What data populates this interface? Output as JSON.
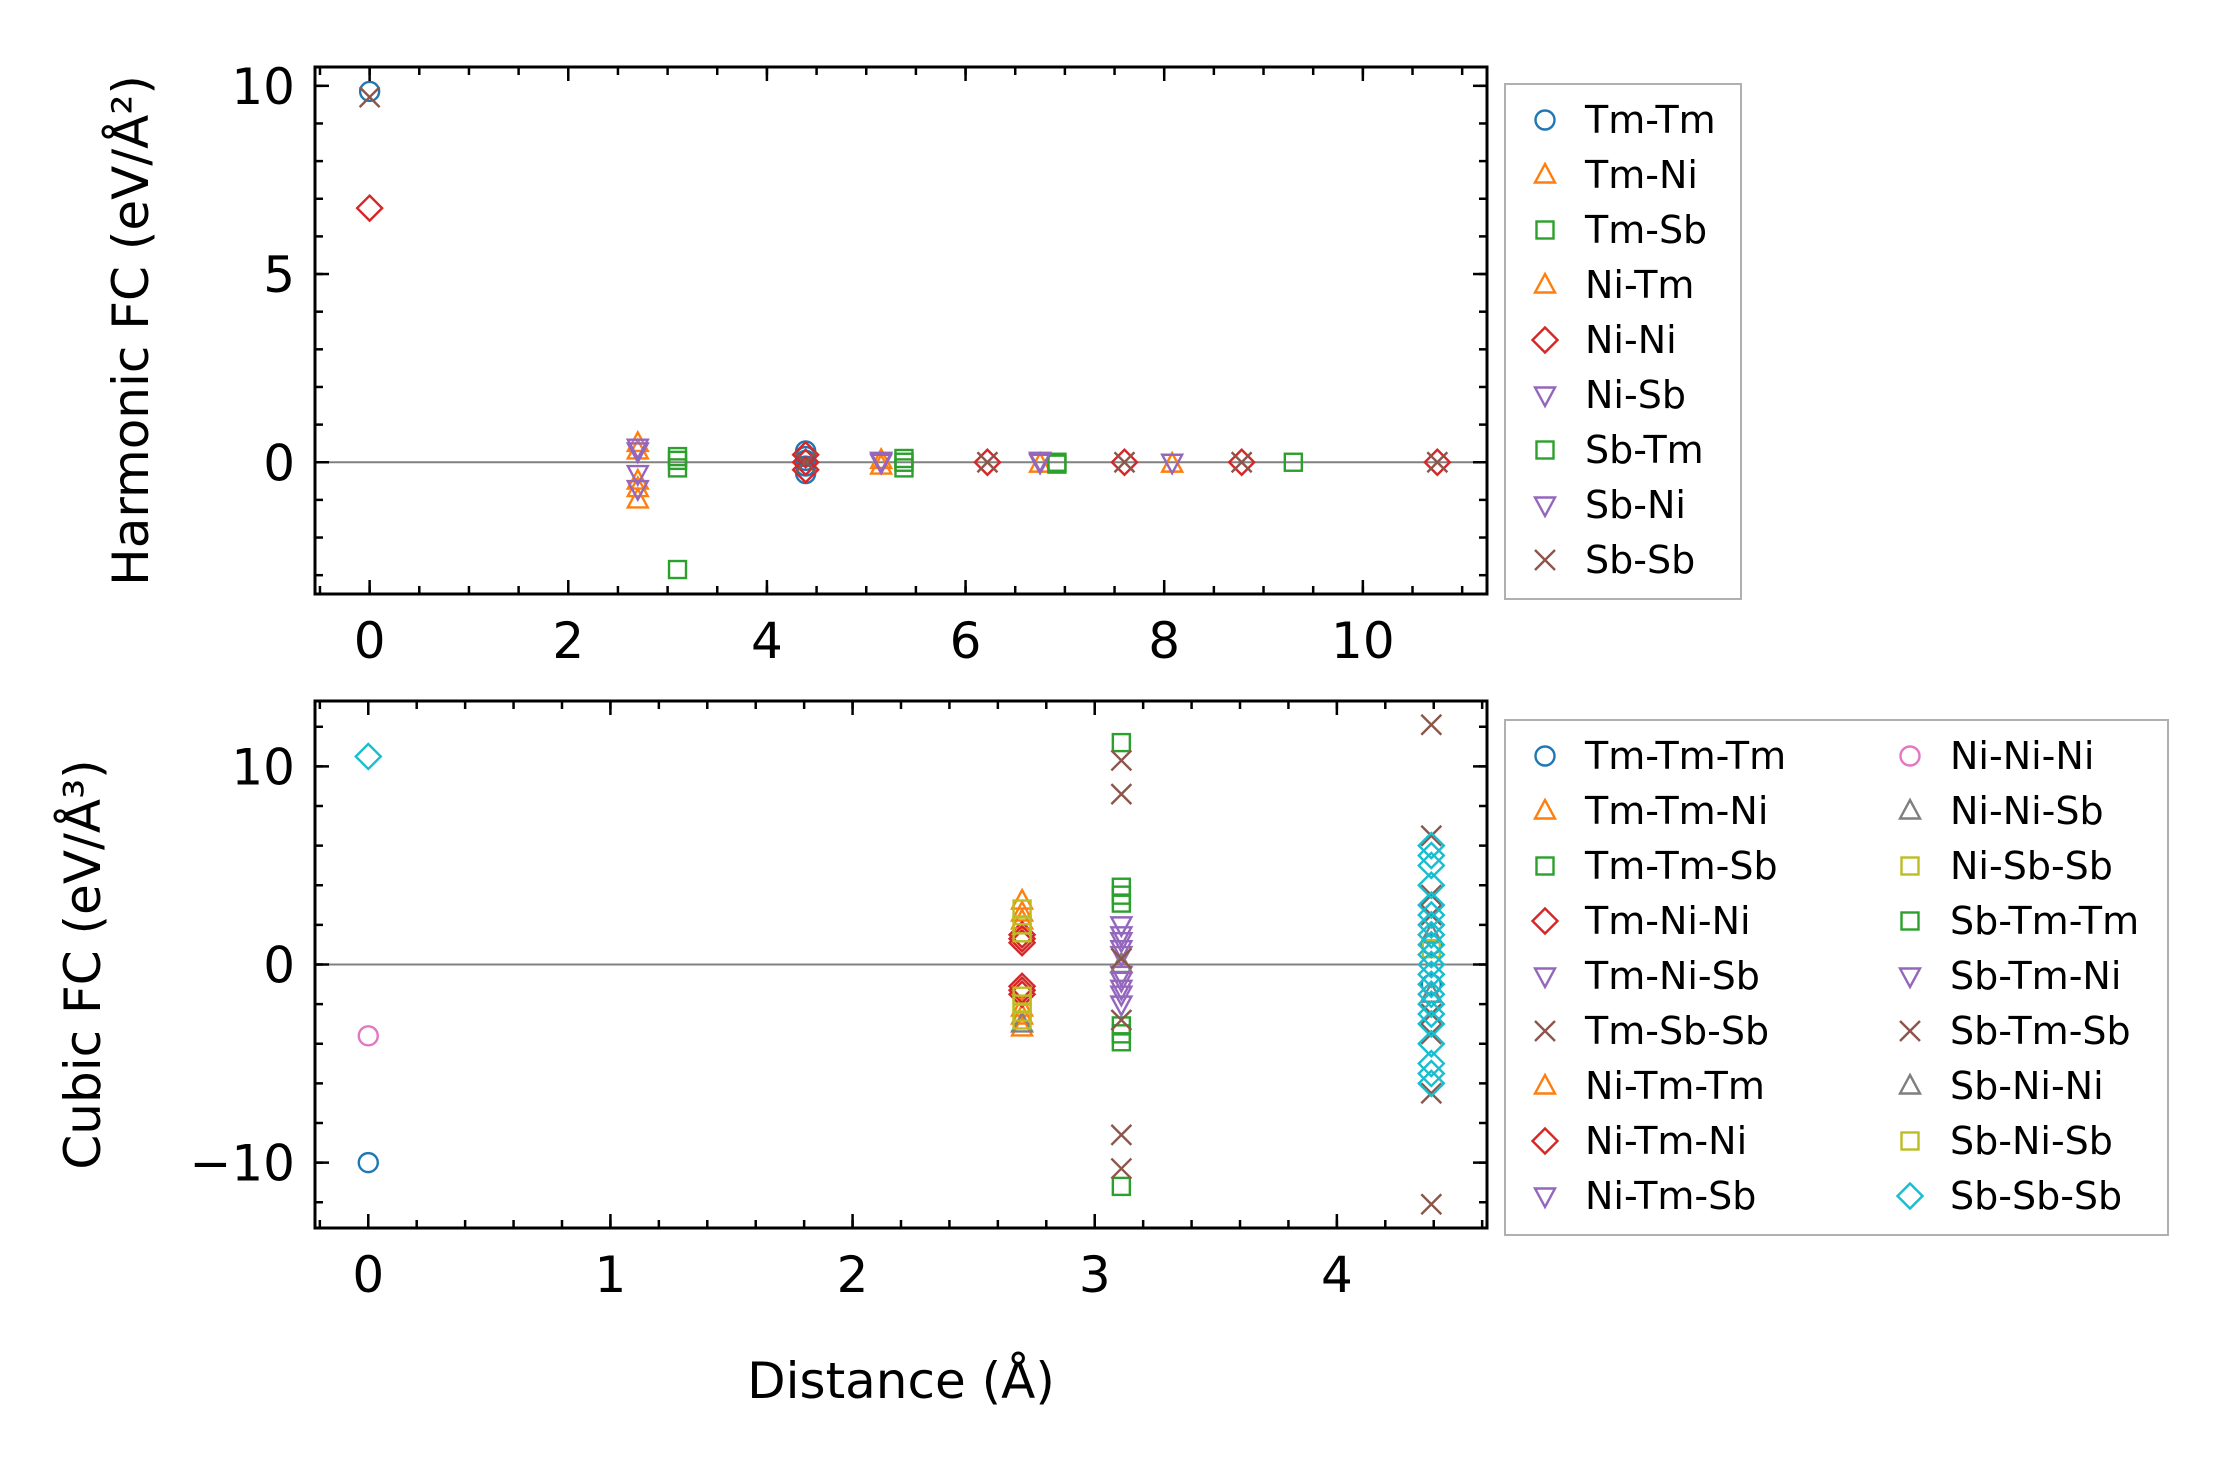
{
  "chart_data": [
    {
      "type": "scatter",
      "title": "",
      "xlabel": "",
      "ylabel": "Harmonic FC (eV/Å²)",
      "xlim": [
        -0.55,
        11.25
      ],
      "ylim": [
        -3.5,
        10.5
      ],
      "xticks": [
        0,
        2,
        4,
        6,
        8,
        10
      ],
      "xtick_labels": [
        "0",
        "2",
        "4",
        "6",
        "8",
        "10"
      ],
      "yticks": [
        0,
        5,
        10
      ],
      "ytick_labels": [
        "0",
        "5",
        "10"
      ],
      "zero_line": true,
      "legend_position": "outside-right",
      "series": [
        {
          "name": "Tm-Tm",
          "marker": "circle",
          "color": "#1f77b4",
          "points": [
            [
              0,
              9.85
            ],
            [
              4.39,
              0.3
            ],
            [
              4.39,
              0.15
            ],
            [
              4.39,
              -0.1
            ],
            [
              4.39,
              -0.3
            ],
            [
              4.39,
              0.05
            ]
          ]
        },
        {
          "name": "Tm-Ni",
          "marker": "triangle-up",
          "color": "#ff7f0e",
          "points": [
            [
              2.7,
              0.5
            ],
            [
              2.7,
              -0.7
            ],
            [
              2.7,
              -1.0
            ],
            [
              5.15,
              -0.1
            ],
            [
              6.75,
              -0.05
            ],
            [
              8.08,
              -0.05
            ]
          ]
        },
        {
          "name": "Tm-Sb",
          "marker": "square",
          "color": "#2ca02c",
          "points": [
            [
              3.1,
              0.15
            ],
            [
              3.1,
              -0.15
            ],
            [
              3.1,
              -2.85
            ],
            [
              5.38,
              0.1
            ],
            [
              5.38,
              -0.15
            ],
            [
              6.92,
              0.0
            ],
            [
              9.3,
              0.0
            ]
          ]
        },
        {
          "name": "Ni-Tm",
          "marker": "triangle-up",
          "color": "#ff7f0e",
          "points": [
            [
              2.7,
              0.3
            ],
            [
              2.7,
              -0.5
            ],
            [
              5.15,
              0.05
            ]
          ]
        },
        {
          "name": "Ni-Ni",
          "marker": "diamond",
          "color": "#d62728",
          "points": [
            [
              0,
              6.75
            ],
            [
              4.39,
              0.2
            ],
            [
              4.39,
              0.0
            ],
            [
              4.39,
              -0.2
            ],
            [
              6.22,
              0.0
            ],
            [
              7.6,
              0.0
            ],
            [
              8.78,
              0.0
            ],
            [
              10.75,
              0.0
            ]
          ]
        },
        {
          "name": "Ni-Sb",
          "marker": "triangle-down",
          "color": "#9467bd",
          "points": [
            [
              2.7,
              0.3
            ],
            [
              2.7,
              -0.3
            ],
            [
              2.7,
              -0.7
            ],
            [
              5.15,
              0.0
            ],
            [
              6.75,
              0.0
            ],
            [
              8.08,
              0.0
            ]
          ]
        },
        {
          "name": "Sb-Tm",
          "marker": "square",
          "color": "#2ca02c",
          "points": [
            [
              3.1,
              0.05
            ],
            [
              5.38,
              0.0
            ],
            [
              6.92,
              -0.05
            ]
          ]
        },
        {
          "name": "Sb-Ni",
          "marker": "triangle-down",
          "color": "#9467bd",
          "points": [
            [
              2.7,
              0.4
            ],
            [
              5.15,
              0.05
            ],
            [
              6.75,
              0.05
            ]
          ]
        },
        {
          "name": "Sb-Sb",
          "marker": "x",
          "color": "#8c564b",
          "points": [
            [
              0,
              9.7
            ],
            [
              4.39,
              0.0
            ],
            [
              6.22,
              0.0
            ],
            [
              7.6,
              0.0
            ],
            [
              8.78,
              0.0
            ],
            [
              10.75,
              0.0
            ]
          ]
        }
      ]
    },
    {
      "type": "scatter",
      "title": "",
      "xlabel": "Distance (Å)",
      "ylabel": "Cubic FC (eV/Å³)",
      "xlim": [
        -0.22,
        4.62
      ],
      "ylim": [
        -13.3,
        13.3
      ],
      "xticks": [
        0,
        1,
        2,
        3,
        4
      ],
      "xtick_labels": [
        "0",
        "1",
        "2",
        "3",
        "4"
      ],
      "yticks": [
        -10,
        0,
        10
      ],
      "ytick_labels": [
        "−10",
        "0",
        "10"
      ],
      "zero_line": true,
      "legend_position": "outside-right",
      "series": [
        {
          "name": "Tm-Tm-Tm",
          "marker": "circle",
          "color": "#1f77b4",
          "points": [
            [
              0,
              -10.0
            ],
            [
              4.39,
              1.0
            ],
            [
              4.39,
              -1.0
            ]
          ]
        },
        {
          "name": "Tm-Tm-Ni",
          "marker": "triangle-up",
          "color": "#ff7f0e",
          "points": [
            [
              2.7,
              3.2
            ],
            [
              2.7,
              2.6
            ],
            [
              2.7,
              -2.6
            ],
            [
              2.7,
              -3.2
            ]
          ]
        },
        {
          "name": "Tm-Tm-Sb",
          "marker": "square",
          "color": "#2ca02c",
          "points": [
            [
              3.11,
              11.2
            ],
            [
              3.11,
              3.9
            ],
            [
              3.11,
              3.1
            ],
            [
              3.11,
              -3.1
            ],
            [
              3.11,
              -3.9
            ],
            [
              3.11,
              -11.2
            ]
          ]
        },
        {
          "name": "Tm-Ni-Ni",
          "marker": "diamond",
          "color": "#d62728",
          "points": [
            [
              2.7,
              1.5
            ],
            [
              2.7,
              1.1
            ],
            [
              2.7,
              -1.1
            ],
            [
              2.7,
              -1.5
            ]
          ]
        },
        {
          "name": "Tm-Ni-Sb",
          "marker": "triangle-down",
          "color": "#9467bd",
          "points": [
            [
              3.11,
              2.0
            ],
            [
              3.11,
              1.2
            ],
            [
              3.11,
              0.5
            ],
            [
              3.11,
              -0.5
            ],
            [
              3.11,
              -1.2
            ],
            [
              3.11,
              -2.0
            ]
          ]
        },
        {
          "name": "Tm-Sb-Sb",
          "marker": "x",
          "color": "#8c564b",
          "points": [
            [
              3.11,
              10.3
            ],
            [
              3.11,
              8.6
            ],
            [
              3.11,
              -8.6
            ],
            [
              3.11,
              -10.3
            ],
            [
              4.39,
              12.1
            ],
            [
              4.39,
              -12.1
            ]
          ]
        },
        {
          "name": "Ni-Tm-Tm",
          "marker": "triangle-up",
          "color": "#ff7f0e",
          "points": [
            [
              2.7,
              2.2
            ],
            [
              2.7,
              -2.2
            ]
          ]
        },
        {
          "name": "Ni-Tm-Ni",
          "marker": "diamond",
          "color": "#d62728",
          "points": [
            [
              2.7,
              1.3
            ],
            [
              2.7,
              -1.3
            ]
          ]
        },
        {
          "name": "Ni-Tm-Sb",
          "marker": "triangle-down",
          "color": "#9467bd",
          "points": [
            [
              3.11,
              1.5
            ],
            [
              3.11,
              -1.5
            ]
          ]
        },
        {
          "name": "Ni-Ni-Ni",
          "marker": "circle",
          "color": "#e377c2",
          "points": [
            [
              0,
              -3.6
            ]
          ]
        },
        {
          "name": "Ni-Ni-Sb",
          "marker": "triangle-up",
          "color": "#7f7f7f",
          "points": [
            [
              2.7,
              -3.0
            ],
            [
              3.11,
              0.0
            ]
          ]
        },
        {
          "name": "Ni-Sb-Sb",
          "marker": "square",
          "color": "#bcbd22",
          "points": [
            [
              2.7,
              2.0
            ],
            [
              2.7,
              1.6
            ],
            [
              2.7,
              -1.6
            ],
            [
              2.7,
              -2.0
            ],
            [
              2.7,
              -2.4
            ]
          ]
        },
        {
          "name": "Sb-Tm-Tm",
          "marker": "square",
          "color": "#2ca02c",
          "points": [
            [
              3.11,
              3.5
            ],
            [
              3.11,
              -3.5
            ]
          ]
        },
        {
          "name": "Sb-Tm-Ni",
          "marker": "triangle-down",
          "color": "#9467bd",
          "points": [
            [
              3.11,
              0.8
            ],
            [
              3.11,
              -0.8
            ]
          ]
        },
        {
          "name": "Sb-Tm-Sb",
          "marker": "x",
          "color": "#8c564b",
          "points": [
            [
              3.11,
              -2.8
            ],
            [
              3.11,
              0.3
            ],
            [
              4.39,
              6.5
            ],
            [
              4.39,
              3.5
            ],
            [
              4.39,
              2.5
            ],
            [
              4.39,
              -2.5
            ],
            [
              4.39,
              -3.5
            ],
            [
              4.39,
              -6.5
            ]
          ]
        },
        {
          "name": "Sb-Ni-Ni",
          "marker": "triangle-up",
          "color": "#7f7f7f",
          "points": [
            [
              4.39,
              1.5
            ],
            [
              4.39,
              -1.5
            ]
          ]
        },
        {
          "name": "Sb-Ni-Sb",
          "marker": "square",
          "color": "#bcbd22",
          "points": [
            [
              2.7,
              2.8
            ],
            [
              2.7,
              -2.8
            ],
            [
              4.39,
              0.8
            ]
          ]
        },
        {
          "name": "Sb-Sb-Sb",
          "marker": "diamond",
          "color": "#17becf",
          "points": [
            [
              0,
              10.5
            ],
            [
              4.39,
              6.0
            ],
            [
              4.39,
              5.5
            ],
            [
              4.39,
              5.0
            ],
            [
              4.39,
              4.0
            ],
            [
              4.39,
              3.0
            ],
            [
              4.39,
              2.5
            ],
            [
              4.39,
              2.0
            ],
            [
              4.39,
              1.5
            ],
            [
              4.39,
              1.0
            ],
            [
              4.39,
              0.5
            ],
            [
              4.39,
              0.0
            ],
            [
              4.39,
              -0.5
            ],
            [
              4.39,
              -1.0
            ],
            [
              4.39,
              -1.5
            ],
            [
              4.39,
              -2.0
            ],
            [
              4.39,
              -2.5
            ],
            [
              4.39,
              -3.0
            ],
            [
              4.39,
              -4.0
            ],
            [
              4.39,
              -5.0
            ],
            [
              4.39,
              -5.5
            ],
            [
              4.39,
              -6.0
            ]
          ]
        }
      ]
    }
  ]
}
